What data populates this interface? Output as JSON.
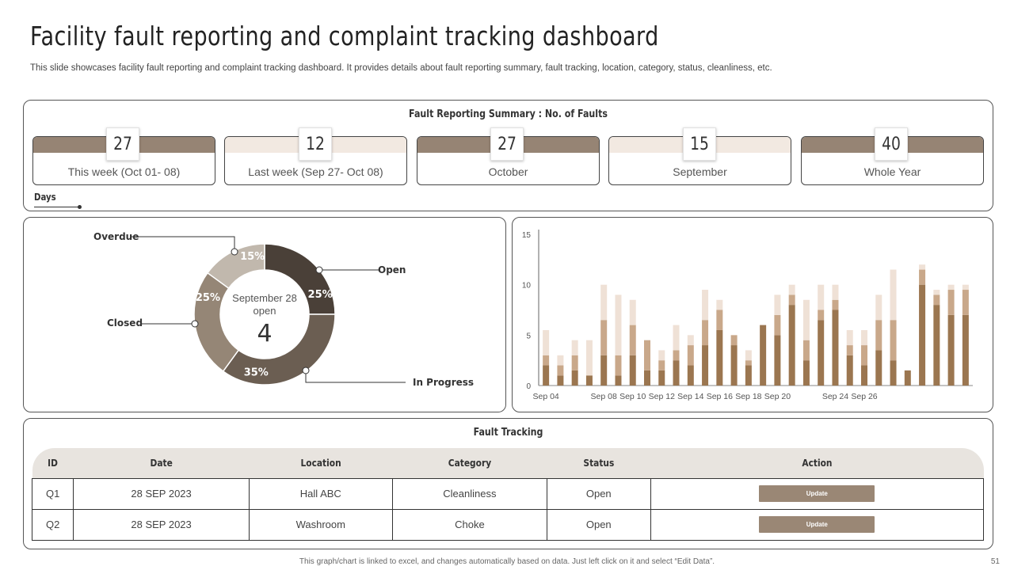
{
  "header": {
    "title": "Facility fault reporting and complaint tracking dashboard",
    "subtitle": "This slide showcases facility fault reporting and complaint tracking dashboard. It provides details about fault reporting summary, fault tracking, location, category, status, cleanliness, etc."
  },
  "summary": {
    "title": "Fault Reporting  Summary  : No. of Faults",
    "cards": [
      {
        "value": "27",
        "label": "This week (Oct 01- 08)",
        "band_color": "#968474"
      },
      {
        "value": "12",
        "label": "Last week (Sep 27- Oct 08)",
        "band_color": "#f2e9e1"
      },
      {
        "value": "27",
        "label": "October",
        "band_color": "#968474"
      },
      {
        "value": "15",
        "label": "September",
        "band_color": "#f2e9e1"
      },
      {
        "value": "40",
        "label": "Whole Year",
        "band_color": "#968474"
      }
    ],
    "days_label": "Days"
  },
  "donut": {
    "center_line1": "September 28",
    "center_line2": "open",
    "center_value": "4",
    "segments": [
      {
        "label": "Open",
        "value": 25,
        "pct_label": "25%",
        "color": "#4a4038"
      },
      {
        "label": "In Progress",
        "value": 35,
        "pct_label": "35%",
        "color": "#6b5e52"
      },
      {
        "label": "Closed",
        "value": 25,
        "pct_label": "25%",
        "color": "#958676"
      },
      {
        "label": "Overdue",
        "value": 15,
        "pct_label": "15%",
        "color": "#c1b8ad"
      }
    ]
  },
  "chart_data": {
    "type": "bar",
    "stacked": true,
    "x": [
      "Sep 04",
      "Sep 05",
      "Sep 06",
      "Sep 07",
      "Sep 08",
      "Sep 09",
      "Sep 10",
      "Sep 11",
      "Sep 12",
      "Sep 13",
      "Sep 14",
      "Sep 15",
      "Sep 16",
      "Sep 17",
      "Sep 18",
      "Sep 19",
      "Sep 20",
      "Sep 21",
      "Sep 22",
      "Sep 23",
      "Sep 24",
      "Sep 25",
      "Sep 26",
      "Sep 27",
      "Sep 28",
      "Sep 29",
      "Sep 30",
      "Oct 01",
      "Oct 02",
      "Oct 03"
    ],
    "tick_labels": [
      "Sep 04",
      "Sep 08",
      "Sep 10",
      "Sep 12",
      "Sep 14",
      "Sep 16",
      "Sep 18",
      "Sep 20",
      "Sep 24",
      "Sep 26"
    ],
    "ylim": [
      0,
      15
    ],
    "yticks": [
      0,
      5,
      10,
      15
    ],
    "colors": [
      "#9b7650",
      "#c9a88a",
      "#efe1d6"
    ],
    "series": [
      {
        "values": [
          2,
          1,
          1.5,
          1,
          3,
          1,
          3,
          1.5,
          1.5,
          2.5,
          2,
          4,
          5.5,
          4,
          2,
          6,
          5,
          8,
          2.5,
          6.5,
          7.5,
          3,
          2,
          3.5,
          2.5,
          1.5,
          10,
          8,
          7,
          7
        ]
      },
      {
        "values": [
          1,
          1,
          1.5,
          0,
          3.5,
          2,
          3,
          3,
          1,
          1,
          2,
          2.5,
          2,
          1,
          0.5,
          0,
          2,
          1,
          2,
          1,
          1,
          1,
          2,
          3,
          4,
          0,
          1.5,
          1,
          2.5,
          2.5
        ]
      },
      {
        "values": [
          2.5,
          1,
          1.5,
          3.5,
          3.5,
          6,
          2.5,
          0,
          1,
          2.5,
          1,
          3,
          1,
          0,
          1,
          0,
          2,
          1,
          4,
          2.5,
          1.5,
          1.5,
          1.5,
          2.5,
          5,
          0,
          0.5,
          0.5,
          0.5,
          0.5
        ]
      }
    ]
  },
  "tracking": {
    "title": "Fault Tracking",
    "columns": [
      "ID",
      "Date",
      "Location",
      "Category",
      "Status",
      "Action"
    ],
    "rows": [
      {
        "id": "Q1",
        "date": "28 SEP 2023",
        "location": "Hall ABC",
        "category": "Cleanliness",
        "status": "Open",
        "action": "Update"
      },
      {
        "id": "Q2",
        "date": "28 SEP 2023",
        "location": "Washroom",
        "category": "Choke",
        "status": "Open",
        "action": "Update"
      }
    ]
  },
  "footer": {
    "note": "This graph/chart is linked to excel, and changes automatically based on data. Just left click on it and select “Edit Data”.",
    "page": "51"
  }
}
